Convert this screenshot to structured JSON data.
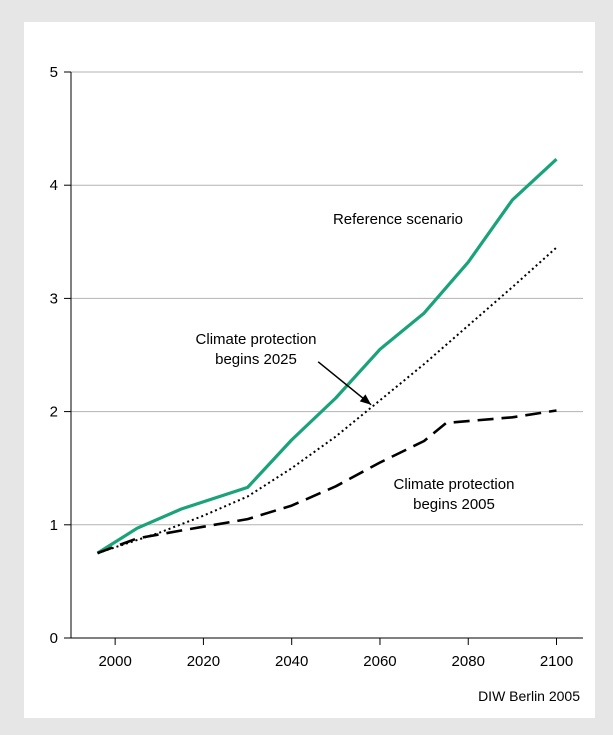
{
  "chart_data": {
    "type": "line",
    "xlim": [
      1990,
      2106
    ],
    "ylim": [
      0,
      5
    ],
    "x_ticks": [
      2000,
      2020,
      2040,
      2060,
      2080,
      2100
    ],
    "y_ticks": [
      0,
      1,
      2,
      3,
      4,
      5
    ],
    "grid": "horizontal",
    "series": [
      {
        "key": "reference",
        "color": "#1aa37a",
        "style": "solid",
        "points": [
          [
            1996,
            0.75
          ],
          [
            2005,
            0.97
          ],
          [
            2015,
            1.14
          ],
          [
            2030,
            1.33
          ],
          [
            2040,
            1.75
          ],
          [
            2050,
            2.12
          ],
          [
            2060,
            2.55
          ],
          [
            2070,
            2.87
          ],
          [
            2080,
            3.32
          ],
          [
            2090,
            3.87
          ],
          [
            2100,
            4.23
          ]
        ]
      },
      {
        "key": "climate_2025",
        "color": "#000000",
        "style": "dotted",
        "points": [
          [
            1996,
            0.75
          ],
          [
            2010,
            0.93
          ],
          [
            2020,
            1.08
          ],
          [
            2030,
            1.25
          ],
          [
            2040,
            1.5
          ],
          [
            2050,
            1.78
          ],
          [
            2060,
            2.1
          ],
          [
            2070,
            2.42
          ],
          [
            2080,
            2.76
          ],
          [
            2090,
            3.1
          ],
          [
            2100,
            3.45
          ]
        ]
      },
      {
        "key": "climate_2005",
        "color": "#000000",
        "style": "dashed",
        "points": [
          [
            1996,
            0.75
          ],
          [
            2005,
            0.88
          ],
          [
            2015,
            0.95
          ],
          [
            2030,
            1.05
          ],
          [
            2040,
            1.17
          ],
          [
            2050,
            1.34
          ],
          [
            2060,
            1.55
          ],
          [
            2070,
            1.74
          ],
          [
            2075,
            1.9
          ],
          [
            2090,
            1.95
          ],
          [
            2100,
            2.01
          ]
        ]
      }
    ],
    "annotations": {
      "reference": "Reference scenario",
      "climate_2025_line1": "Climate protection",
      "climate_2025_line2": "begins 2025",
      "climate_2005_line1": "Climate protection",
      "climate_2005_line2": "begins 2005"
    },
    "arrow": {
      "from": [
        2046,
        2.44
      ],
      "to": [
        2058,
        2.06
      ]
    },
    "source": "DIW Berlin 2005"
  }
}
